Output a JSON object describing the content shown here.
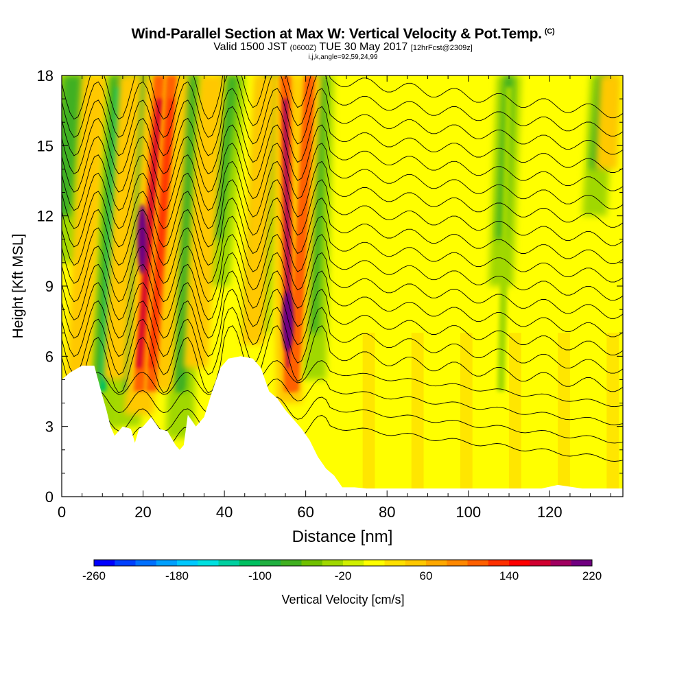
{
  "header": {
    "title": "Wind-Parallel Section at Max W: Vertical Velocity & Pot.Temp.",
    "title_mark": "(C)",
    "valid_main": "Valid 1500 JST",
    "valid_utc": "(0600Z)",
    "valid_date": "TUE 30 May 2017",
    "valid_fcst": "[12hrFcst@2309z]",
    "indices": "i,j,k,angle=92,59,24,99"
  },
  "chart_data": {
    "type": "heatmap",
    "title": "Wind-Parallel Section at Max W: Vertical Velocity & Pot.Temp.",
    "xlabel": "Distance [nm]",
    "ylabel": "Height [Kft MSL]",
    "xlim": [
      0,
      138
    ],
    "ylim": [
      0,
      18
    ],
    "x_ticks": [
      "0",
      "20",
      "40",
      "60",
      "80",
      "100",
      "120"
    ],
    "y_ticks": [
      "0",
      "3",
      "6",
      "9",
      "12",
      "15",
      "18"
    ],
    "colorbar": {
      "label": "Vertical Velocity [cm/s]",
      "tick_labels": [
        "-260",
        "-180",
        "-100",
        "-20",
        "60",
        "140",
        "220"
      ],
      "min": -260,
      "max": 220,
      "step": 20,
      "colors": [
        "#0000ff",
        "#0040ff",
        "#0070ff",
        "#00a0ff",
        "#00c8ff",
        "#00e0e0",
        "#00d0a0",
        "#00c060",
        "#20b040",
        "#40b020",
        "#70c000",
        "#a0d800",
        "#d0f000",
        "#ffff00",
        "#ffe000",
        "#ffc800",
        "#ffa800",
        "#ff8800",
        "#ff6000",
        "#ff3000",
        "#ff0000",
        "#d00030",
        "#a00060",
        "#700080"
      ]
    },
    "terrain_kft": [
      [
        0,
        5.0
      ],
      [
        2,
        5.3
      ],
      [
        5,
        5.6
      ],
      [
        8,
        5.6
      ],
      [
        10,
        4.3
      ],
      [
        11,
        3.7
      ],
      [
        12,
        3.0
      ],
      [
        13,
        2.6
      ],
      [
        15,
        3.0
      ],
      [
        17,
        2.9
      ],
      [
        18,
        2.3
      ],
      [
        19,
        2.9
      ],
      [
        20,
        3.0
      ],
      [
        22,
        3.4
      ],
      [
        24,
        2.9
      ],
      [
        26,
        2.8
      ],
      [
        27,
        2.5
      ],
      [
        28,
        2.2
      ],
      [
        29,
        2.0
      ],
      [
        30,
        2.2
      ],
      [
        31,
        3.5
      ],
      [
        33,
        3.0
      ],
      [
        35,
        3.4
      ],
      [
        37,
        4.5
      ],
      [
        39,
        5.5
      ],
      [
        41,
        5.9
      ],
      [
        44,
        6.0
      ],
      [
        47,
        5.9
      ],
      [
        49,
        5.5
      ],
      [
        51,
        4.5
      ],
      [
        53,
        4.2
      ],
      [
        55,
        3.7
      ],
      [
        57,
        3.3
      ],
      [
        59,
        2.9
      ],
      [
        61,
        2.4
      ],
      [
        63,
        1.7
      ],
      [
        65,
        1.2
      ],
      [
        67,
        0.9
      ],
      [
        69,
        0.4
      ],
      [
        72,
        0.4
      ],
      [
        75,
        0.35
      ],
      [
        118,
        0.35
      ],
      [
        122,
        0.5
      ],
      [
        128,
        0.35
      ],
      [
        138,
        0.35
      ]
    ],
    "updraft_cores": [
      {
        "x_top": 24,
        "x_bottom": 19,
        "peak_cms": 200
      },
      {
        "x_top": 27,
        "x_bottom": 22,
        "peak_cms": 160
      },
      {
        "x_top": 55,
        "x_bottom": 56,
        "peak_cms": 220
      },
      {
        "x_top": 61,
        "x_bottom": 57,
        "peak_cms": 140
      }
    ],
    "downdraft_cores": [
      {
        "x_top": 14,
        "x_bottom": 10,
        "min_cms": -120
      },
      {
        "x_top": 20,
        "x_bottom": 16,
        "min_cms": -100
      },
      {
        "x_top": 31,
        "x_bottom": 29,
        "min_cms": -80
      },
      {
        "x_top": 110,
        "x_bottom": 108,
        "min_cms": -40
      }
    ],
    "contour_variable": "Pot.Temp. (C)",
    "isentrope_count": 20
  }
}
